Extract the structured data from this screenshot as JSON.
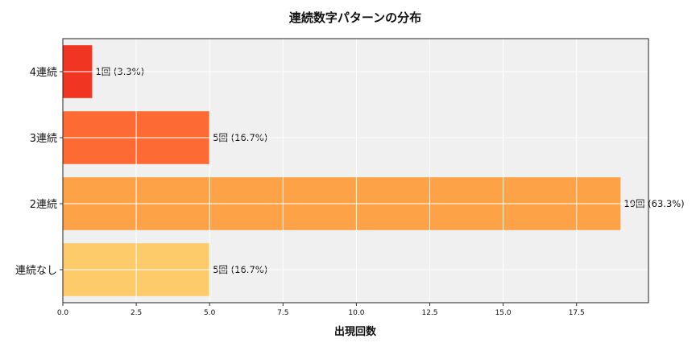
{
  "chart_data": {
    "type": "bar",
    "orientation": "horizontal",
    "title": "連続数字パターンの分布",
    "xlabel": "出現回数",
    "ylabel": "",
    "categories": [
      "4連続",
      "3連続",
      "2連続",
      "連続なし"
    ],
    "values": [
      1,
      5,
      19,
      5
    ],
    "bar_labels": [
      "1回 (3.3%)",
      "5回 (16.7%)",
      "19回 (63.3%)",
      "5回 (16.7%)"
    ],
    "colors": [
      "#f03523",
      "#fe6a33",
      "#fda246",
      "#fecb6a"
    ],
    "xlim": [
      0,
      20
    ],
    "xticks": [
      0,
      2.5,
      5,
      7.5,
      10,
      12.5,
      15,
      17.5
    ],
    "xtick_labels": [
      "0.0",
      "2.5",
      "5.0",
      "7.5",
      "10.0",
      "12.5",
      "15.0",
      "17.5"
    ],
    "grid": true,
    "plot_background": "#f0f0f0"
  }
}
